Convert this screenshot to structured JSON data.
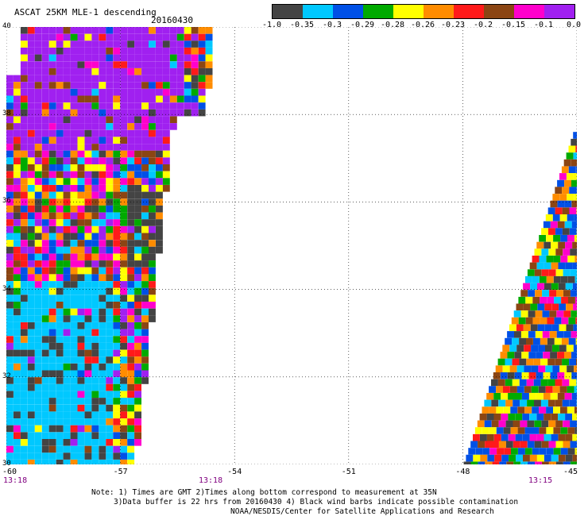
{
  "title": "ASCAT 25KM MLE-1 descending",
  "date": "20160430",
  "legend": {
    "colors": [
      "#444444",
      "#00c8ff",
      "#0050e6",
      "#00aa00",
      "#ffff00",
      "#ff8c00",
      "#ff1a1a",
      "#8b4513",
      "#ff00cc",
      "#a020f0"
    ],
    "labels": [
      "-1.0",
      "-0.35",
      "-0.3",
      "-0.29",
      "-0.28",
      "-0.26",
      "-0.23",
      "-0.2",
      "-0.15",
      "-0.1",
      "0.0"
    ]
  },
  "map": {
    "lon_min": -60,
    "lon_max": -45,
    "lat_min": 30,
    "lat_max": 40,
    "lon_ticks": [
      "-60",
      "-57",
      "-54",
      "-51",
      "-48",
      "-45"
    ],
    "lat_ticks": [
      "40",
      "38",
      "36",
      "34",
      "32",
      "30"
    ],
    "grid": true
  },
  "times": {
    "left": "13:18",
    "mid": "13:18",
    "right": "13:15"
  },
  "notes": {
    "line1": "Note: 1) Times are GMT 2)Times along bottom correspond to measurement at 35N",
    "line2": "3)Data buffer is 22 hrs from 20160430 4) Black wind barbs indicate possible contamination",
    "line3": "NOAA/NESDIS/Center for Satellite Applications and Research"
  }
}
